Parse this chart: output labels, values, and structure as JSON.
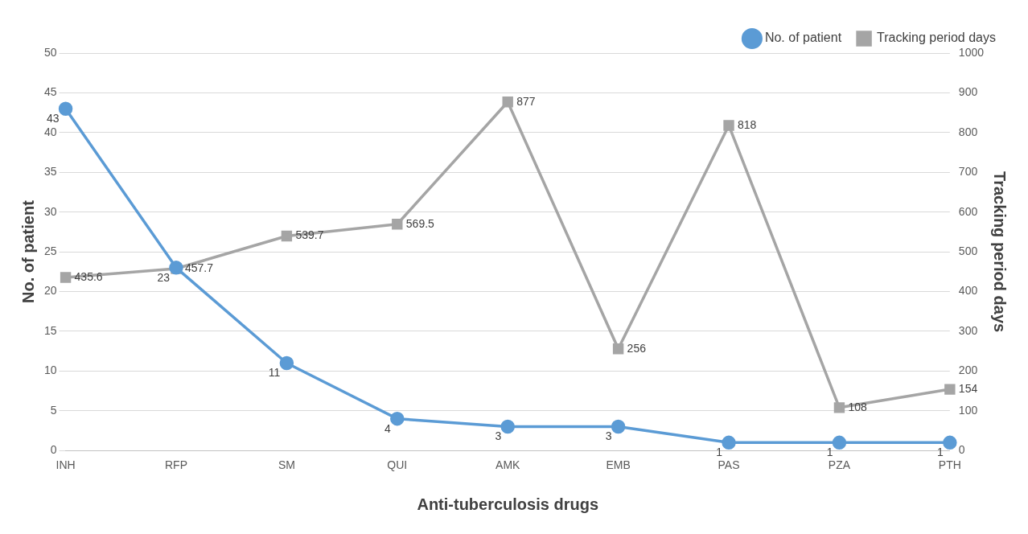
{
  "chart_data": {
    "type": "line",
    "xlabel": "Anti-tuberculosis drugs",
    "ylabel": "No. of patient",
    "y2label": "Tracking period days",
    "categories": [
      "INH",
      "RFP",
      "SM",
      "QUI",
      "AMK",
      "EMB",
      "PAS",
      "PZA",
      "PTH"
    ],
    "series": [
      {
        "name": "No. of patient",
        "color": "#5b9bd5",
        "marker": "circle",
        "values": [
          43,
          23,
          11,
          4,
          3,
          3,
          1,
          1,
          1
        ]
      },
      {
        "name": "Tracking period days",
        "color": "#a5a5a5",
        "marker": "square",
        "axis": "y2",
        "values": [
          435.6,
          457.7,
          539.7,
          569.5,
          877,
          256,
          818,
          108,
          154
        ]
      }
    ],
    "ylim": [
      0,
      50
    ],
    "yticks": [
      0,
      5,
      10,
      15,
      20,
      25,
      30,
      35,
      40,
      45,
      50
    ],
    "y2lim": [
      0,
      1000
    ],
    "y2ticks": [
      0,
      100,
      200,
      300,
      400,
      500,
      600,
      700,
      800,
      900,
      1000
    ],
    "grid": "y",
    "legend": "top right",
    "data_labels": true,
    "line_style": "solid"
  }
}
